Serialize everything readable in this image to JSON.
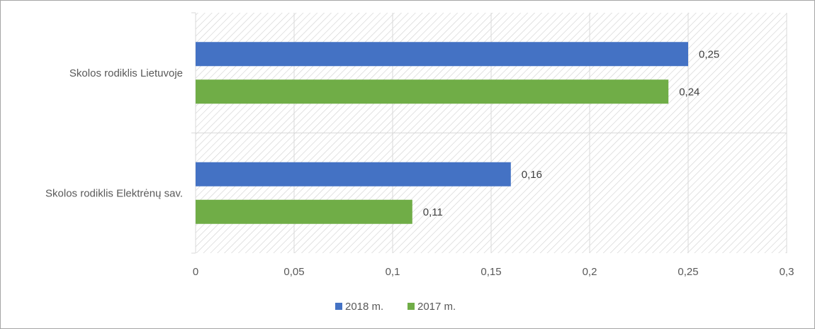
{
  "chart_data": {
    "type": "bar",
    "orientation": "horizontal",
    "categories": [
      "Skolos rodiklis Lietuvoje",
      "Skolos rodiklis Elektrėnų sav."
    ],
    "series": [
      {
        "name": "2018 m.",
        "color": "#4472C4",
        "values": [
          0.25,
          0.16
        ],
        "labels": [
          "0,25",
          "0,16"
        ]
      },
      {
        "name": "2017 m.",
        "color": "#70AD47",
        "values": [
          0.24,
          0.11
        ],
        "labels": [
          "0,24",
          "0,11"
        ]
      }
    ],
    "xlim": [
      0,
      0.3
    ],
    "x_ticks": [
      0,
      0.05,
      0.1,
      0.15,
      0.2,
      0.25,
      0.3
    ],
    "x_tick_labels": [
      "0",
      "0,05",
      "0,1",
      "0,15",
      "0,2",
      "0,25",
      "0,3"
    ],
    "title": "",
    "xlabel": "",
    "ylabel": "",
    "grid": true,
    "plot_background": "diagonal-hatch",
    "legend_position": "bottom"
  }
}
